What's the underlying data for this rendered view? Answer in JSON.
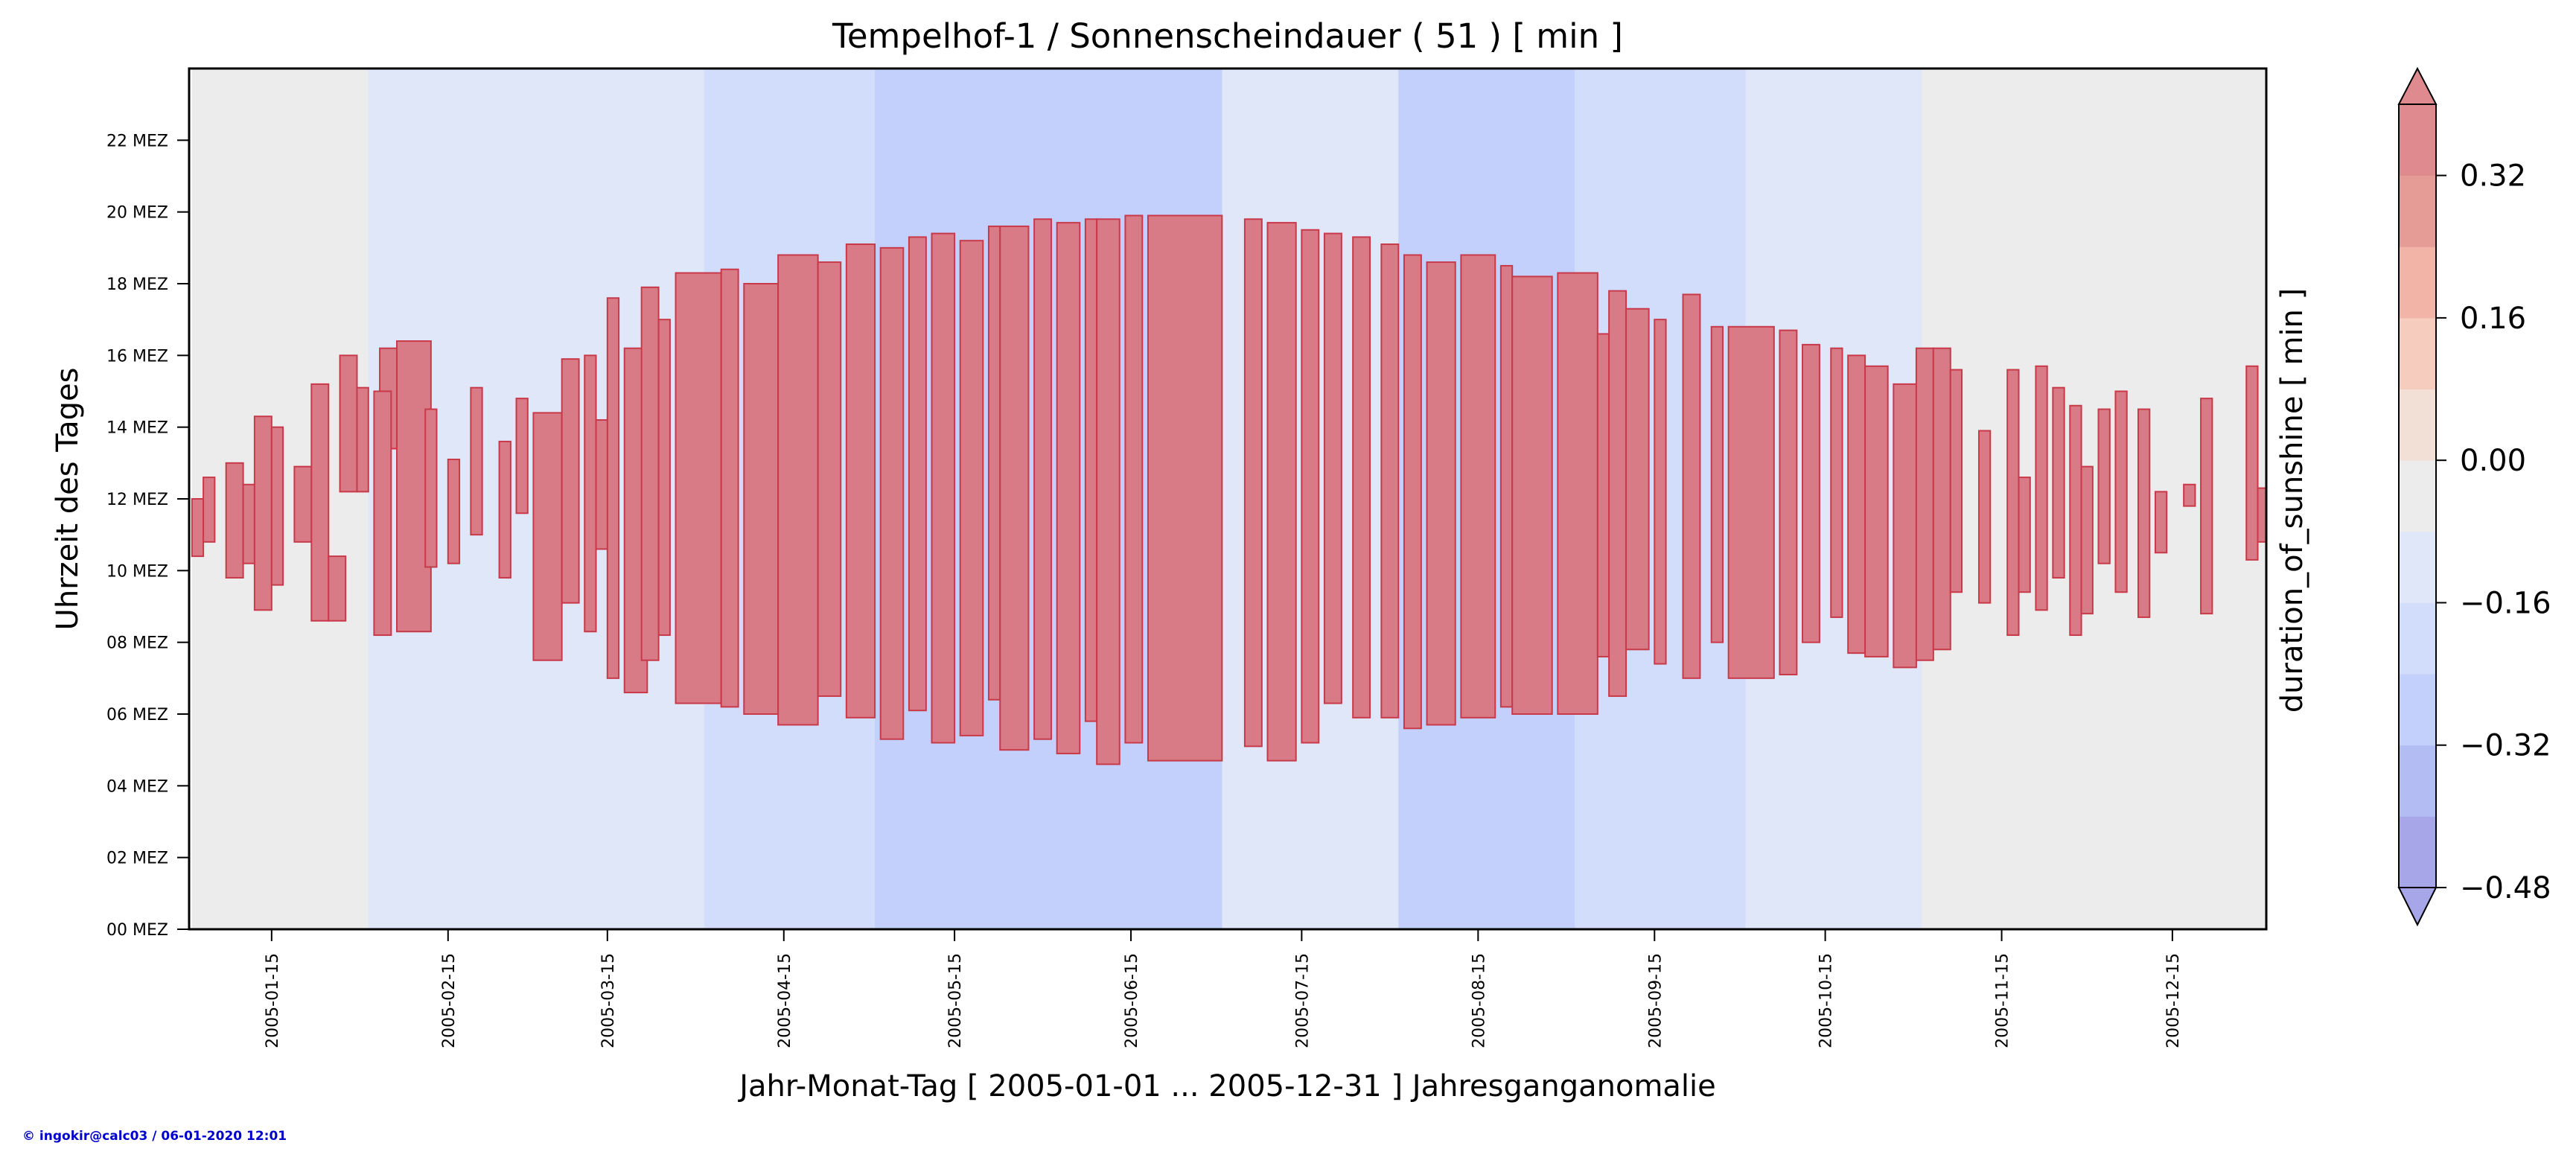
{
  "chart_data": {
    "type": "heatmap",
    "title": "Tempelhof-1 / Sonnenscheindauer ( 51 ) [ min ]",
    "xlabel": "Jahr-Monat-Tag [ 2005-01-01 ... 2005-12-31 ] Jahresganganomalie",
    "ylabel": "Uhrzeit des Tages",
    "x_range": [
      "2005-01-01",
      "2005-12-31"
    ],
    "y_range_hours": [
      0,
      24
    ],
    "x_ticks": [
      "2005-01-15",
      "2005-02-15",
      "2005-03-15",
      "2005-04-15",
      "2005-05-15",
      "2005-06-15",
      "2005-07-15",
      "2005-08-15",
      "2005-09-15",
      "2005-10-15",
      "2005-11-15",
      "2005-12-15"
    ],
    "y_ticks": [
      "00 MEZ",
      "02 MEZ",
      "04 MEZ",
      "06 MEZ",
      "08 MEZ",
      "10 MEZ",
      "12 MEZ",
      "14 MEZ",
      "16 MEZ",
      "18 MEZ",
      "20 MEZ",
      "22 MEZ"
    ],
    "colorbar": {
      "label": "duration_of_sunshine [ min ]",
      "ticks": [
        "0.32",
        "0.16",
        "0.00",
        "−0.16",
        "−0.32",
        "−0.48"
      ],
      "tick_values": [
        0.32,
        0.16,
        0.0,
        -0.16,
        -0.32,
        -0.48
      ],
      "range": [
        -0.48,
        0.4
      ],
      "levels": [
        {
          "from": -0.48,
          "to": -0.4,
          "color": "#a6a6e8"
        },
        {
          "from": -0.4,
          "to": -0.32,
          "color": "#b3bdf4"
        },
        {
          "from": -0.32,
          "to": -0.24,
          "color": "#c3d0fb"
        },
        {
          "from": -0.24,
          "to": -0.16,
          "color": "#d2ddfb"
        },
        {
          "from": -0.16,
          "to": -0.08,
          "color": "#e0e7f8"
        },
        {
          "from": -0.08,
          "to": 0.0,
          "color": "#ececec"
        },
        {
          "from": 0.0,
          "to": 0.08,
          "color": "#f2dfd6"
        },
        {
          "from": 0.08,
          "to": 0.16,
          "color": "#f5ccbe"
        },
        {
          "from": 0.16,
          "to": 0.24,
          "color": "#f1b4a6"
        },
        {
          "from": 0.24,
          "to": 0.32,
          "color": "#e69c96"
        },
        {
          "from": 0.32,
          "to": 0.4,
          "color": "#de8a8e"
        }
      ]
    },
    "monthly_background": [
      {
        "month": "2005-01",
        "value": -0.04,
        "color": "#ececec"
      },
      {
        "month": "2005-02",
        "value": -0.14,
        "color": "#e0e7f8"
      },
      {
        "month": "2005-03",
        "value": -0.14,
        "color": "#e0e7f8"
      },
      {
        "month": "2005-04",
        "value": -0.22,
        "color": "#d2ddfb"
      },
      {
        "month": "2005-05",
        "value": -0.3,
        "color": "#c3d0fb"
      },
      {
        "month": "2005-06",
        "value": -0.3,
        "color": "#c3d0fb"
      },
      {
        "month": "2005-07",
        "value": -0.14,
        "color": "#e0e7f8"
      },
      {
        "month": "2005-08",
        "value": -0.3,
        "color": "#c3d0fb"
      },
      {
        "month": "2005-09",
        "value": -0.22,
        "color": "#d2ddfb"
      },
      {
        "month": "2005-10",
        "value": -0.14,
        "color": "#e0e7f8"
      },
      {
        "month": "2005-11",
        "value": -0.04,
        "color": "#ececec"
      },
      {
        "month": "2005-12",
        "value": -0.04,
        "color": "#ececec"
      }
    ],
    "anomaly_color": "#d97b86",
    "anomaly_edge_color": "#c8394a",
    "anomaly_bands": [
      {
        "from_day": 1,
        "to_day": 2,
        "start_h": 10.4,
        "end_h": 12.0
      },
      {
        "from_day": 3,
        "to_day": 4,
        "start_h": 10.8,
        "end_h": 12.6
      },
      {
        "from_day": 7,
        "to_day": 9,
        "start_h": 9.8,
        "end_h": 13.0
      },
      {
        "from_day": 10,
        "to_day": 11,
        "start_h": 10.2,
        "end_h": 12.4
      },
      {
        "from_day": 12,
        "to_day": 14,
        "start_h": 8.9,
        "end_h": 14.3
      },
      {
        "from_day": 15,
        "to_day": 16,
        "start_h": 9.6,
        "end_h": 14.0
      },
      {
        "from_day": 19,
        "to_day": 21,
        "start_h": 10.8,
        "end_h": 12.9
      },
      {
        "from_day": 22,
        "to_day": 24,
        "start_h": 8.6,
        "end_h": 15.2
      },
      {
        "from_day": 25,
        "to_day": 27,
        "start_h": 8.6,
        "end_h": 10.4
      },
      {
        "from_day": 27,
        "to_day": 29,
        "start_h": 12.2,
        "end_h": 16.0
      },
      {
        "from_day": 30,
        "to_day": 31,
        "start_h": 12.2,
        "end_h": 15.1
      },
      {
        "from_day": 34,
        "to_day": 36,
        "start_h": 13.4,
        "end_h": 16.2
      },
      {
        "from_day": 33,
        "to_day": 35,
        "start_h": 8.2,
        "end_h": 15.0
      },
      {
        "from_day": 37,
        "to_day": 42,
        "start_h": 8.3,
        "end_h": 16.4
      },
      {
        "from_day": 42,
        "to_day": 43,
        "start_h": 10.1,
        "end_h": 14.5
      },
      {
        "from_day": 46,
        "to_day": 47,
        "start_h": 10.2,
        "end_h": 13.1
      },
      {
        "from_day": 50,
        "to_day": 51,
        "start_h": 11.0,
        "end_h": 15.1
      },
      {
        "from_day": 55,
        "to_day": 56,
        "start_h": 9.8,
        "end_h": 13.6
      },
      {
        "from_day": 58,
        "to_day": 59,
        "start_h": 11.6,
        "end_h": 14.8
      },
      {
        "from_day": 61,
        "to_day": 65,
        "start_h": 7.5,
        "end_h": 14.4
      },
      {
        "from_day": 66,
        "to_day": 68,
        "start_h": 9.1,
        "end_h": 15.9
      },
      {
        "from_day": 70,
        "to_day": 71,
        "start_h": 8.3,
        "end_h": 16.0
      },
      {
        "from_day": 72,
        "to_day": 74,
        "start_h": 10.6,
        "end_h": 14.2
      },
      {
        "from_day": 74,
        "to_day": 75,
        "start_h": 7.0,
        "end_h": 17.6
      },
      {
        "from_day": 77,
        "to_day": 80,
        "start_h": 6.6,
        "end_h": 16.2
      },
      {
        "from_day": 80,
        "to_day": 82,
        "start_h": 7.5,
        "end_h": 17.9
      },
      {
        "from_day": 83,
        "to_day": 84,
        "start_h": 8.2,
        "end_h": 17.0
      },
      {
        "from_day": 86,
        "to_day": 93,
        "start_h": 6.3,
        "end_h": 18.3
      },
      {
        "from_day": 94,
        "to_day": 96,
        "start_h": 6.2,
        "end_h": 18.4
      },
      {
        "from_day": 98,
        "to_day": 103,
        "start_h": 6.0,
        "end_h": 18.0
      },
      {
        "from_day": 104,
        "to_day": 110,
        "start_h": 5.7,
        "end_h": 18.8
      },
      {
        "from_day": 111,
        "to_day": 114,
        "start_h": 6.5,
        "end_h": 18.6
      },
      {
        "from_day": 116,
        "to_day": 120,
        "start_h": 5.9,
        "end_h": 19.1
      },
      {
        "from_day": 122,
        "to_day": 125,
        "start_h": 5.3,
        "end_h": 19.0
      },
      {
        "from_day": 127,
        "to_day": 129,
        "start_h": 6.1,
        "end_h": 19.3
      },
      {
        "from_day": 131,
        "to_day": 134,
        "start_h": 5.2,
        "end_h": 19.4
      },
      {
        "from_day": 136,
        "to_day": 139,
        "start_h": 5.4,
        "end_h": 19.2
      },
      {
        "from_day": 141,
        "to_day": 142,
        "start_h": 6.4,
        "end_h": 19.6
      },
      {
        "from_day": 143,
        "to_day": 147,
        "start_h": 5.0,
        "end_h": 19.6
      },
      {
        "from_day": 149,
        "to_day": 151,
        "start_h": 5.3,
        "end_h": 19.8
      },
      {
        "from_day": 153,
        "to_day": 156,
        "start_h": 4.9,
        "end_h": 19.7
      },
      {
        "from_day": 158,
        "to_day": 159,
        "start_h": 5.8,
        "end_h": 19.8
      },
      {
        "from_day": 160,
        "to_day": 163,
        "start_h": 4.6,
        "end_h": 19.8
      },
      {
        "from_day": 165,
        "to_day": 167,
        "start_h": 5.2,
        "end_h": 19.9
      },
      {
        "from_day": 169,
        "to_day": 181,
        "start_h": 4.7,
        "end_h": 19.9
      },
      {
        "from_day": 186,
        "to_day": 188,
        "start_h": 5.1,
        "end_h": 19.8
      },
      {
        "from_day": 190,
        "to_day": 194,
        "start_h": 4.7,
        "end_h": 19.7
      },
      {
        "from_day": 196,
        "to_day": 198,
        "start_h": 5.2,
        "end_h": 19.5
      },
      {
        "from_day": 200,
        "to_day": 202,
        "start_h": 6.3,
        "end_h": 19.4
      },
      {
        "from_day": 205,
        "to_day": 207,
        "start_h": 5.9,
        "end_h": 19.3
      },
      {
        "from_day": 210,
        "to_day": 212,
        "start_h": 5.9,
        "end_h": 19.1
      },
      {
        "from_day": 214,
        "to_day": 216,
        "start_h": 5.6,
        "end_h": 18.8
      },
      {
        "from_day": 218,
        "to_day": 222,
        "start_h": 5.7,
        "end_h": 18.6
      },
      {
        "from_day": 224,
        "to_day": 229,
        "start_h": 5.9,
        "end_h": 18.8
      },
      {
        "from_day": 231,
        "to_day": 232,
        "start_h": 6.2,
        "end_h": 18.5
      },
      {
        "from_day": 233,
        "to_day": 239,
        "start_h": 6.0,
        "end_h": 18.2
      },
      {
        "from_day": 241,
        "to_day": 247,
        "start_h": 6.0,
        "end_h": 18.3
      },
      {
        "from_day": 248,
        "to_day": 249,
        "start_h": 7.6,
        "end_h": 16.6
      },
      {
        "from_day": 250,
        "to_day": 252,
        "start_h": 6.5,
        "end_h": 17.8
      },
      {
        "from_day": 253,
        "to_day": 256,
        "start_h": 7.8,
        "end_h": 17.3
      },
      {
        "from_day": 258,
        "to_day": 259,
        "start_h": 7.4,
        "end_h": 17.0
      },
      {
        "from_day": 263,
        "to_day": 265,
        "start_h": 7.0,
        "end_h": 17.7
      },
      {
        "from_day": 268,
        "to_day": 269,
        "start_h": 8.0,
        "end_h": 16.8
      },
      {
        "from_day": 271,
        "to_day": 278,
        "start_h": 7.0,
        "end_h": 16.8
      },
      {
        "from_day": 280,
        "to_day": 282,
        "start_h": 7.1,
        "end_h": 16.7
      },
      {
        "from_day": 284,
        "to_day": 286,
        "start_h": 8.0,
        "end_h": 16.3
      },
      {
        "from_day": 289,
        "to_day": 290,
        "start_h": 8.7,
        "end_h": 16.2
      },
      {
        "from_day": 292,
        "to_day": 294,
        "start_h": 7.7,
        "end_h": 16.0
      },
      {
        "from_day": 295,
        "to_day": 298,
        "start_h": 7.6,
        "end_h": 15.7
      },
      {
        "from_day": 300,
        "to_day": 303,
        "start_h": 7.3,
        "end_h": 15.2
      },
      {
        "from_day": 304,
        "to_day": 306,
        "start_h": 7.5,
        "end_h": 16.2
      },
      {
        "from_day": 307,
        "to_day": 309,
        "start_h": 7.8,
        "end_h": 16.2
      },
      {
        "from_day": 310,
        "to_day": 311,
        "start_h": 9.4,
        "end_h": 15.6
      },
      {
        "from_day": 315,
        "to_day": 316,
        "start_h": 9.1,
        "end_h": 13.9
      },
      {
        "from_day": 320,
        "to_day": 321,
        "start_h": 8.2,
        "end_h": 15.6
      },
      {
        "from_day": 322,
        "to_day": 323,
        "start_h": 9.4,
        "end_h": 12.6
      },
      {
        "from_day": 325,
        "to_day": 326,
        "start_h": 8.9,
        "end_h": 15.7
      },
      {
        "from_day": 328,
        "to_day": 329,
        "start_h": 9.8,
        "end_h": 15.1
      },
      {
        "from_day": 331,
        "to_day": 332,
        "start_h": 8.2,
        "end_h": 14.6
      },
      {
        "from_day": 333,
        "to_day": 334,
        "start_h": 8.8,
        "end_h": 12.9
      },
      {
        "from_day": 336,
        "to_day": 337,
        "start_h": 10.2,
        "end_h": 14.5
      },
      {
        "from_day": 339,
        "to_day": 340,
        "start_h": 9.4,
        "end_h": 15.0
      },
      {
        "from_day": 343,
        "to_day": 344,
        "start_h": 8.7,
        "end_h": 14.5
      },
      {
        "from_day": 346,
        "to_day": 347,
        "start_h": 10.5,
        "end_h": 12.2
      },
      {
        "from_day": 351,
        "to_day": 352,
        "start_h": 11.8,
        "end_h": 12.4
      },
      {
        "from_day": 354,
        "to_day": 355,
        "start_h": 8.8,
        "end_h": 14.8
      },
      {
        "from_day": 362,
        "to_day": 363,
        "start_h": 10.3,
        "end_h": 15.7
      },
      {
        "from_day": 364,
        "to_day": 365,
        "start_h": 10.8,
        "end_h": 12.3
      }
    ],
    "credit": "© ingokir@calc03 / 06-01-2020 12:01"
  }
}
